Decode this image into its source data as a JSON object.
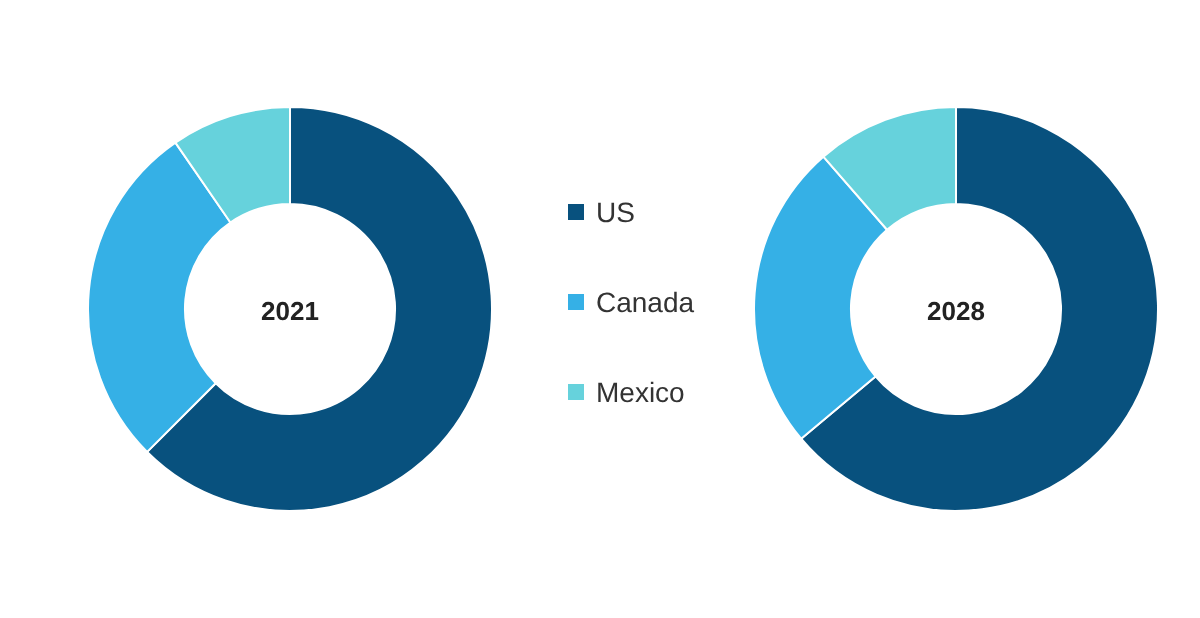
{
  "chart_data": {
    "type": "donut",
    "categories": [
      "US",
      "Canada",
      "Mexico"
    ],
    "colors": [
      "#08517e",
      "#35b0e6",
      "#66d2dc"
    ],
    "legend": "right",
    "series": [
      {
        "name": "2021",
        "values": [
          62.5,
          27.9,
          9.6
        ]
      },
      {
        "name": "2028",
        "values": [
          63.9,
          24.7,
          11.4
        ]
      }
    ]
  }
}
